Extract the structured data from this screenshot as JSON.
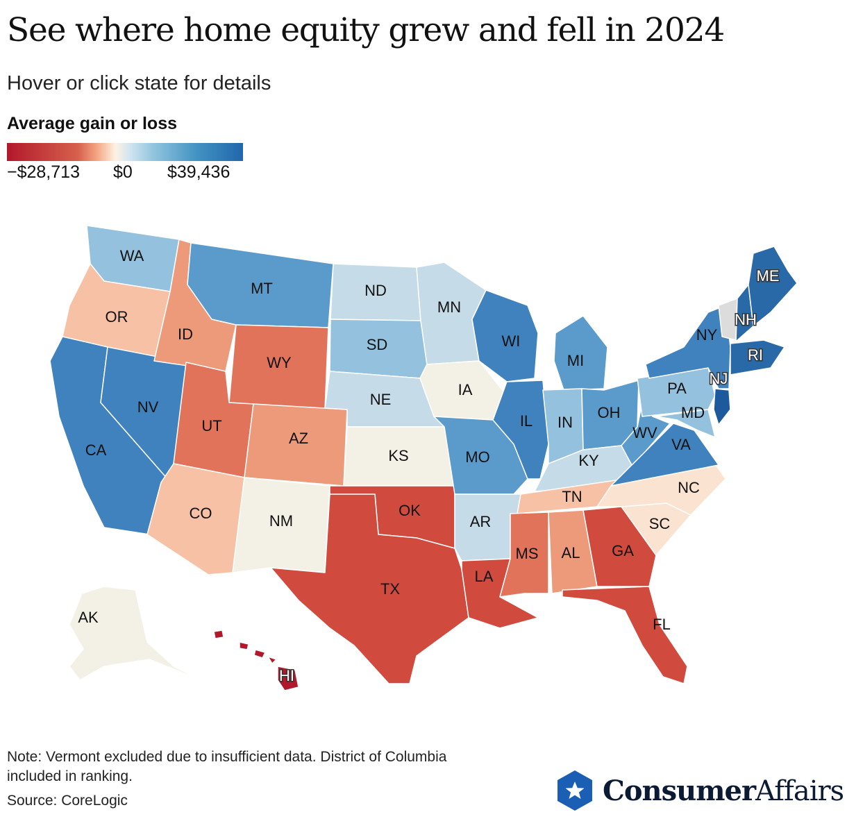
{
  "title": "See where home equity grew and fell in 2024",
  "subtitle": "Hover or click state for details",
  "legend": {
    "title": "Average gain or loss",
    "min_label": "−$28,713",
    "mid_label": "$0",
    "max_label": "$39,436",
    "min_value": -28713,
    "max_value": 39436
  },
  "colors": {
    "deep_red": "#b2182b",
    "red": "#d14a3e",
    "mid_red": "#e0735a",
    "salmon": "#ec9a7a",
    "peach": "#f6c1a4",
    "pale_peach": "#fbe3d2",
    "cream": "#f3f1e6",
    "light_blue": "#c5dbe8",
    "sky": "#94c1de",
    "mid_blue": "#5b9bcc",
    "blue": "#3f82bd",
    "dark_blue": "#2a69a8",
    "deepest_blue": "#1c5a9c",
    "no_data": "#dcdcdc"
  },
  "chart_data": {
    "type": "choropleth",
    "title": "See where home equity grew and fell in 2024",
    "metric": "Average gain or loss",
    "range": [
      -28713,
      39436
    ],
    "states": [
      {
        "code": "WA",
        "tone": "sky"
      },
      {
        "code": "OR",
        "tone": "peach"
      },
      {
        "code": "CA",
        "tone": "blue"
      },
      {
        "code": "NV",
        "tone": "blue"
      },
      {
        "code": "ID",
        "tone": "salmon"
      },
      {
        "code": "MT",
        "tone": "mid_blue"
      },
      {
        "code": "WY",
        "tone": "mid_red"
      },
      {
        "code": "UT",
        "tone": "mid_red"
      },
      {
        "code": "AZ",
        "tone": "peach"
      },
      {
        "code": "CO",
        "tone": "salmon"
      },
      {
        "code": "NM",
        "tone": "cream"
      },
      {
        "code": "ND",
        "tone": "light_blue"
      },
      {
        "code": "SD",
        "tone": "sky"
      },
      {
        "code": "NE",
        "tone": "light_blue"
      },
      {
        "code": "KS",
        "tone": "cream"
      },
      {
        "code": "OK",
        "tone": "red"
      },
      {
        "code": "TX",
        "tone": "red"
      },
      {
        "code": "MN",
        "tone": "light_blue"
      },
      {
        "code": "IA",
        "tone": "cream"
      },
      {
        "code": "MO",
        "tone": "mid_blue"
      },
      {
        "code": "AR",
        "tone": "light_blue"
      },
      {
        "code": "LA",
        "tone": "red"
      },
      {
        "code": "WI",
        "tone": "blue"
      },
      {
        "code": "IL",
        "tone": "blue"
      },
      {
        "code": "MI",
        "tone": "mid_blue"
      },
      {
        "code": "IN",
        "tone": "sky"
      },
      {
        "code": "OH",
        "tone": "mid_blue"
      },
      {
        "code": "KY",
        "tone": "light_blue"
      },
      {
        "code": "TN",
        "tone": "peach"
      },
      {
        "code": "MS",
        "tone": "mid_red"
      },
      {
        "code": "AL",
        "tone": "salmon"
      },
      {
        "code": "GA",
        "tone": "red"
      },
      {
        "code": "FL",
        "tone": "red"
      },
      {
        "code": "SC",
        "tone": "pale_peach"
      },
      {
        "code": "NC",
        "tone": "pale_peach"
      },
      {
        "code": "VA",
        "tone": "blue"
      },
      {
        "code": "WV",
        "tone": "mid_blue"
      },
      {
        "code": "MD",
        "tone": "sky"
      },
      {
        "code": "PA",
        "tone": "sky"
      },
      {
        "code": "NY",
        "tone": "blue"
      },
      {
        "code": "NJ",
        "tone": "deepest_blue"
      },
      {
        "code": "RI",
        "tone": "dark_blue"
      },
      {
        "code": "NH",
        "tone": "dark_blue"
      },
      {
        "code": "ME",
        "tone": "dark_blue"
      },
      {
        "code": "VT",
        "tone": "no_data"
      },
      {
        "code": "AK",
        "tone": "cream"
      },
      {
        "code": "HI",
        "tone": "deep_red"
      }
    ]
  },
  "note": "Note: Vermont excluded due to insufficient data. District of Columbia included in ranking.",
  "source": "Source: CoreLogic",
  "brand": {
    "bold": "Consumer",
    "regular": "Affairs"
  }
}
